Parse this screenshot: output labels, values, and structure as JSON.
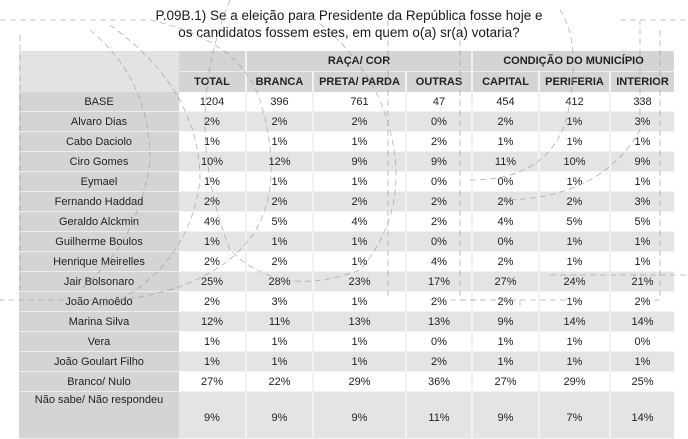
{
  "title": {
    "line1": "P.09B.1) Se a eleição para Presidente da República fosse hoje e",
    "line2": "os candidatos fossem estes, em quem o(a) sr(a) votaria?"
  },
  "header": {
    "groups": {
      "raca": "RAÇA/ COR",
      "condicao": "CONDIÇÃO DO MUNICÍPIO"
    },
    "columns": [
      "TOTAL",
      "BRANCA",
      "PRETA/ PARDA",
      "OUTRAS",
      "CAPITAL",
      "PERIFERIA",
      "INTERIOR"
    ]
  },
  "rows": [
    {
      "label": "BASE",
      "values": [
        "1204",
        "396",
        "761",
        "47",
        "454",
        "412",
        "338"
      ]
    },
    {
      "label": "Alvaro Dias",
      "values": [
        "2%",
        "2%",
        "2%",
        "0%",
        "2%",
        "1%",
        "3%"
      ]
    },
    {
      "label": "Cabo Daciolo",
      "values": [
        "1%",
        "1%",
        "1%",
        "2%",
        "1%",
        "1%",
        "1%"
      ]
    },
    {
      "label": "Ciro Gomes",
      "values": [
        "10%",
        "12%",
        "9%",
        "9%",
        "11%",
        "10%",
        "9%"
      ]
    },
    {
      "label": "Eymael",
      "values": [
        "1%",
        "1%",
        "1%",
        "0%",
        "0%",
        "1%",
        "1%"
      ]
    },
    {
      "label": "Fernando Haddad",
      "values": [
        "2%",
        "2%",
        "2%",
        "2%",
        "2%",
        "2%",
        "3%"
      ]
    },
    {
      "label": "Geraldo Alckmin",
      "values": [
        "4%",
        "5%",
        "4%",
        "2%",
        "4%",
        "5%",
        "5%"
      ]
    },
    {
      "label": "Guilherme Boulos",
      "values": [
        "1%",
        "1%",
        "1%",
        "0%",
        "0%",
        "1%",
        "1%"
      ]
    },
    {
      "label": "Henrique Meirelles",
      "values": [
        "2%",
        "2%",
        "1%",
        "4%",
        "2%",
        "1%",
        "1%"
      ]
    },
    {
      "label": "Jair Bolsonaro",
      "values": [
        "25%",
        "28%",
        "23%",
        "17%",
        "27%",
        "24%",
        "21%"
      ]
    },
    {
      "label": "João Amoêdo",
      "values": [
        "2%",
        "3%",
        "1%",
        "2%",
        "2%",
        "1%",
        "2%"
      ]
    },
    {
      "label": "Marina Silva",
      "values": [
        "12%",
        "11%",
        "13%",
        "13%",
        "9%",
        "14%",
        "14%"
      ]
    },
    {
      "label": "Vera",
      "values": [
        "1%",
        "1%",
        "1%",
        "0%",
        "1%",
        "1%",
        "0%"
      ]
    },
    {
      "label": "João Goulart Filho",
      "values": [
        "1%",
        "1%",
        "1%",
        "2%",
        "1%",
        "1%",
        "1%"
      ]
    },
    {
      "label": "Branco/ Nulo",
      "values": [
        "27%",
        "22%",
        "29%",
        "36%",
        "27%",
        "29%",
        "25%"
      ]
    },
    {
      "label": "Não sabe/ Não respondeu",
      "values": [
        "9%",
        "9%",
        "9%",
        "11%",
        "9%",
        "7%",
        "14%"
      ]
    }
  ]
}
